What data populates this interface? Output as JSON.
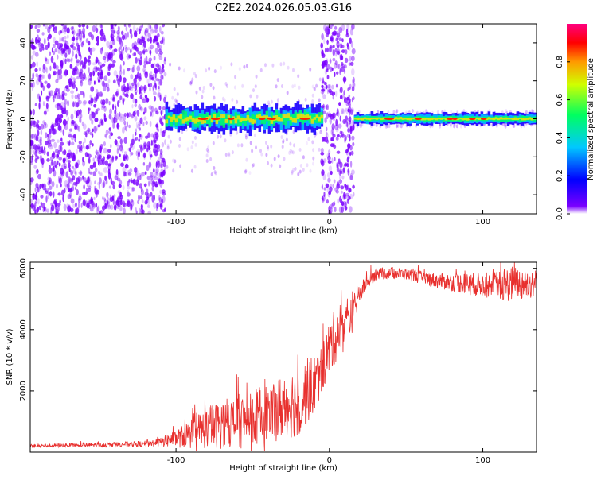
{
  "figure_title": "C2E2.2024.026.05.03.G16",
  "colors": {
    "snr_line": "#e8302e",
    "spectrogram_scatter": "#7a00ff",
    "colorbar_stops": [
      "#7a00ff",
      "#0000ff",
      "#00c8ff",
      "#00ff60",
      "#d0ff00",
      "#ff9a00",
      "#ff0000",
      "#ff0080"
    ]
  },
  "chart_data": [
    {
      "type": "heatmap",
      "title": "C2E2.2024.026.05.03.G16",
      "xlabel": "Height of straight line (km)",
      "ylabel": "Frequency (Hz)",
      "xlim": [
        -195,
        135
      ],
      "ylim": [
        -50,
        50
      ],
      "xticks": [
        -100,
        0,
        100
      ],
      "xtick_labels": [
        "-100",
        "0",
        "100"
      ],
      "yticks": [
        -40,
        -20,
        0,
        20,
        40
      ],
      "ytick_labels": [
        "-40",
        "-20",
        "0",
        "20",
        "40"
      ],
      "colorbar": {
        "label": "Normalized spectral amplitude",
        "range": [
          0,
          1
        ],
        "ticks": [
          0.0,
          0.2,
          0.4,
          0.6,
          0.8
        ],
        "tick_labels": [
          "0.0",
          "0.2",
          "0.4",
          "0.6",
          "0.8"
        ]
      },
      "regions": [
        {
          "x": [
            -195,
            -107
          ],
          "kind": "noise",
          "amplitude": 0.1
        },
        {
          "x": [
            -107,
            -5
          ],
          "kind": "signal_band",
          "center_hz": 0,
          "width_hz": 6,
          "amplitude": 0.5
        },
        {
          "x": [
            -5,
            16
          ],
          "kind": "noise",
          "amplitude": 0.1
        },
        {
          "x": [
            16,
            135
          ],
          "kind": "signal_band",
          "center_hz": 0,
          "width_hz": 3,
          "amplitude": 0.6
        }
      ]
    },
    {
      "type": "line",
      "xlabel": "Height of straight line (km)",
      "ylabel": "SNR (10 * v/v)",
      "xlim": [
        -195,
        135
      ],
      "ylim": [
        0,
        6200
      ],
      "xticks": [
        -100,
        0,
        100
      ],
      "xtick_labels": [
        "-100",
        "0",
        "100"
      ],
      "yticks": [
        2000,
        4000,
        6000
      ],
      "ytick_labels": [
        "2000",
        "4000",
        "6000"
      ],
      "series": [
        {
          "x": [
            -195,
            -180,
            -160,
            -140,
            -120,
            -110,
            -100,
            -90,
            -80,
            -70,
            -60,
            -50,
            -40,
            -30,
            -20,
            -10,
            -5,
            0,
            5,
            10,
            15,
            20,
            25,
            30,
            40,
            50,
            60,
            70,
            80,
            90,
            100,
            110,
            120,
            130,
            135
          ],
          "values": [
            200,
            220,
            230,
            250,
            270,
            320,
            450,
            600,
            800,
            900,
            1000,
            1100,
            1300,
            1500,
            1700,
            2200,
            2700,
            3400,
            3900,
            4200,
            4600,
            5200,
            5600,
            5800,
            5850,
            5800,
            5700,
            5600,
            5550,
            5500,
            5450,
            5450,
            5500,
            5500,
            5500
          ],
          "noise": [
            60,
            60,
            70,
            80,
            100,
            150,
            300,
            500,
            700,
            800,
            900,
            900,
            1000,
            1100,
            1200,
            1000,
            800,
            900,
            900,
            900,
            700,
            300,
            250,
            200,
            180,
            180,
            220,
            250,
            300,
            350,
            400,
            500,
            600,
            500,
            500
          ]
        }
      ]
    }
  ]
}
